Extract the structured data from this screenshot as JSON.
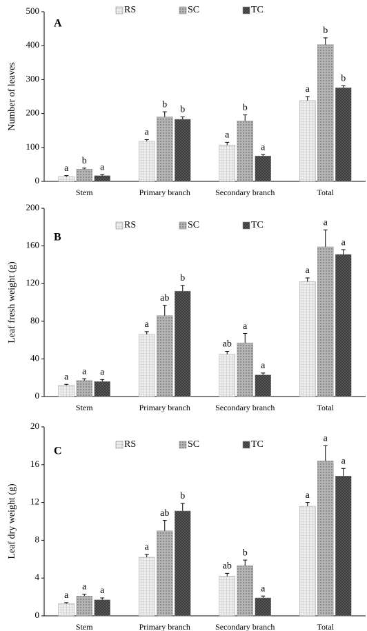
{
  "chart_data": [
    {
      "type": "bar",
      "panel_label": "A",
      "ylabel": "Number of leaves",
      "categories": [
        "Stem",
        "Primary branch",
        "Secondary branch",
        "Total"
      ],
      "ylim": [
        0,
        500
      ],
      "yticks": [
        0,
        100,
        200,
        300,
        400,
        500
      ],
      "series": [
        {
          "name": "RS",
          "color": "#efefef",
          "values": [
            14,
            118,
            107,
            238
          ],
          "errors": [
            3,
            5,
            8,
            12
          ],
          "letters": [
            "a",
            "a",
            "a",
            "a"
          ]
        },
        {
          "name": "SC",
          "color": "#b4b4b4",
          "values": [
            36,
            190,
            178,
            403
          ],
          "errors": [
            3,
            15,
            18,
            20
          ],
          "letters": [
            "b",
            "b",
            "b",
            "b"
          ]
        },
        {
          "name": "TC",
          "color": "#5e5e5e",
          "values": [
            17,
            183,
            75,
            276
          ],
          "errors": [
            3,
            7,
            4,
            6
          ],
          "letters": [
            "a",
            "b",
            "a",
            "b"
          ]
        }
      ]
    },
    {
      "type": "bar",
      "panel_label": "B",
      "ylabel": "Leaf fresh weight (g)",
      "categories": [
        "Stem",
        "Primary branch",
        "Secondary branch",
        "Total"
      ],
      "ylim": [
        0,
        200
      ],
      "yticks": [
        0,
        40,
        80,
        120,
        160,
        200
      ],
      "series": [
        {
          "name": "RS",
          "color": "#efefef",
          "values": [
            12,
            66,
            45,
            122
          ],
          "errors": [
            1,
            3,
            3,
            4
          ],
          "letters": [
            "a",
            "a",
            "ab",
            "a"
          ]
        },
        {
          "name": "SC",
          "color": "#b4b4b4",
          "values": [
            17,
            86,
            57,
            159
          ],
          "errors": [
            2,
            11,
            10,
            18
          ],
          "letters": [
            "a",
            "ab",
            "a",
            "a"
          ]
        },
        {
          "name": "TC",
          "color": "#5e5e5e",
          "values": [
            16,
            112,
            23,
            151
          ],
          "errors": [
            2,
            6,
            2,
            5
          ],
          "letters": [
            "a",
            "b",
            "a",
            "a"
          ]
        }
      ]
    },
    {
      "type": "bar",
      "panel_label": "C",
      "ylabel": "Leaf dry weight (g)",
      "categories": [
        "Stem",
        "Primary branch",
        "Secondary branch",
        "Total"
      ],
      "ylim": [
        0,
        20
      ],
      "yticks": [
        0,
        4,
        8,
        12,
        16,
        20
      ],
      "series": [
        {
          "name": "RS",
          "color": "#efefef",
          "values": [
            1.3,
            6.2,
            4.2,
            11.6
          ],
          "errors": [
            0.1,
            0.3,
            0.3,
            0.4
          ],
          "letters": [
            "a",
            "a",
            "ab",
            "a"
          ]
        },
        {
          "name": "SC",
          "color": "#b4b4b4",
          "values": [
            2.1,
            9.0,
            5.3,
            16.4
          ],
          "errors": [
            0.2,
            1.1,
            0.6,
            1.6
          ],
          "letters": [
            "a",
            "ab",
            "b",
            "a"
          ]
        },
        {
          "name": "TC",
          "color": "#5e5e5e",
          "values": [
            1.7,
            11.1,
            1.9,
            14.8
          ],
          "errors": [
            0.2,
            0.8,
            0.2,
            0.8
          ],
          "letters": [
            "a",
            "b",
            "a",
            "a"
          ]
        }
      ]
    }
  ]
}
